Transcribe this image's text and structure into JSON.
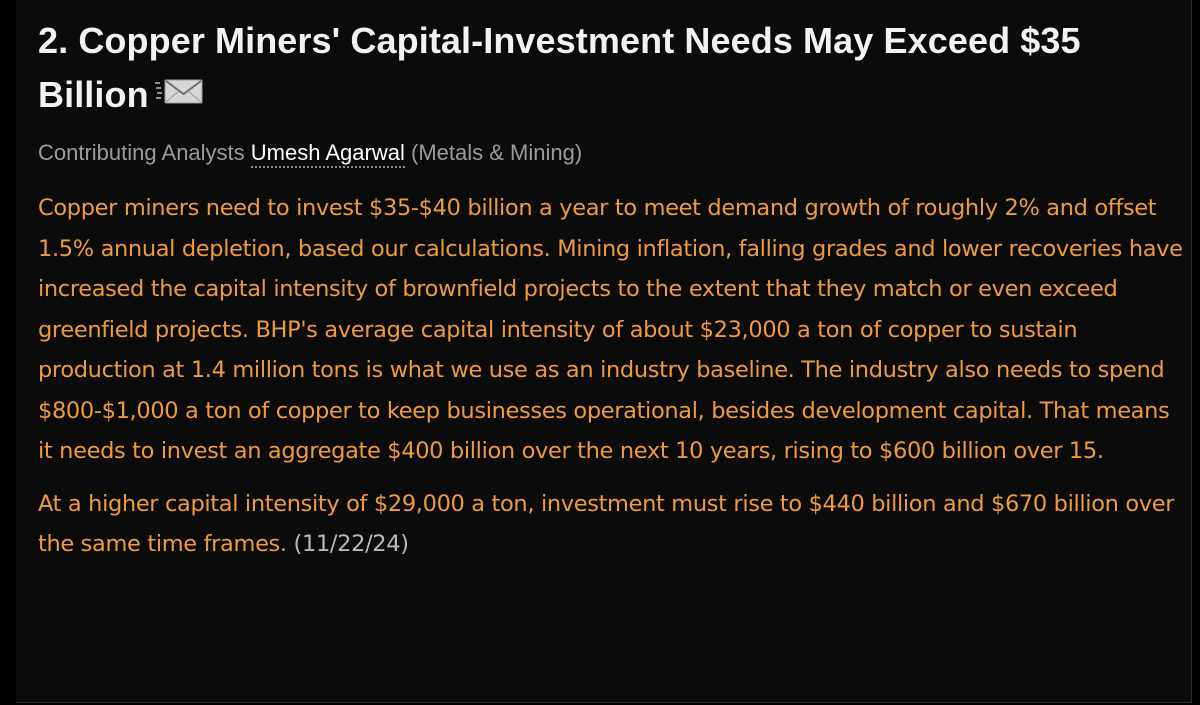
{
  "article": {
    "headline": "2. Copper Miners' Capital-Investment Needs May Exceed $35 Billion",
    "byline_prefix": "Contributing Analysts",
    "analyst_name": "Umesh Agarwal",
    "analyst_sector": "(Metals & Mining)",
    "paragraph1": "Copper miners need to invest $35-$40 billion a year to meet demand growth of roughly 2% and offset 1.5% annual depletion, based our calculations. Mining inflation, falling grades and lower recoveries have increased the capital intensity of brownfield projects to the extent that they match or even exceed greenfield projects. BHP's average capital intensity of about $23,000 a ton of copper to sustain production at 1.4 million tons is what we use as an industry baseline. The industry also needs to spend $800-$1,000 a ton of copper to keep businesses operational, besides development capital. That means it needs to invest an aggregate $400 billion over the next 10 years, rising to $600 billion over 15.",
    "paragraph2": "At a higher capital intensity of $29,000 a ton, investment must rise to $440 billion and $670 billion over the same time frames.",
    "date": "(11/22/24)"
  },
  "icons": {
    "share": "email-envelope-icon"
  },
  "colors": {
    "background": "#000000",
    "headline": "#f2f2f2",
    "body_text": "#ee9a3f",
    "byline": "#9b9b9b",
    "link": "#ffffff",
    "date": "#b8b8b8"
  }
}
